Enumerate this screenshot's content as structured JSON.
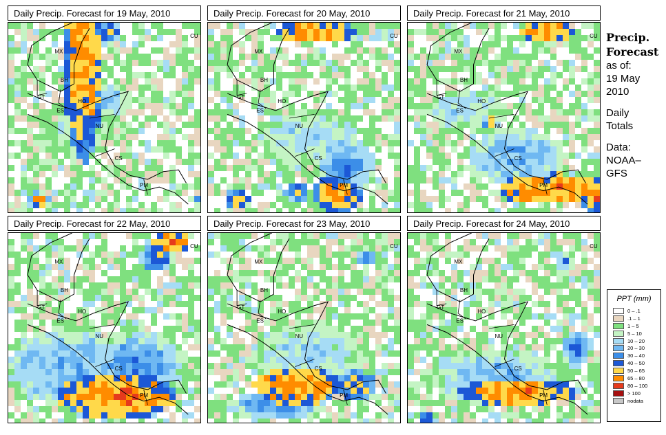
{
  "panels": [
    {
      "title": "Daily Precip. Forecast for  19 May, 2010",
      "seed": 19,
      "blobs": [
        [
          0.38,
          0.18,
          0.1,
          0.55,
          9,
          6
        ],
        [
          0.5,
          0.05,
          0.07,
          0.05,
          8,
          4
        ],
        [
          0.15,
          0.93,
          0.06,
          0.05,
          9,
          3
        ],
        [
          0.98,
          0.93,
          0.04,
          0.04,
          9,
          2
        ],
        [
          0.45,
          0.4,
          0.18,
          0.1,
          5,
          2
        ],
        [
          0.35,
          0.55,
          0.22,
          0.15,
          3,
          1
        ]
      ]
    },
    {
      "title": "Daily Precip. Forecast for  20 May, 2010",
      "seed": 20,
      "blobs": [
        [
          0.55,
          0.05,
          0.2,
          0.06,
          9,
          7
        ],
        [
          0.65,
          0.9,
          0.12,
          0.1,
          9,
          6
        ],
        [
          0.45,
          0.88,
          0.06,
          0.05,
          8,
          4
        ],
        [
          0.15,
          0.92,
          0.07,
          0.05,
          9,
          4
        ],
        [
          0.5,
          0.6,
          0.25,
          0.15,
          4,
          2
        ],
        [
          0.7,
          0.75,
          0.15,
          0.15,
          6,
          3
        ]
      ]
    },
    {
      "title": "Daily Precip. Forecast for  21 May, 2010",
      "seed": 21,
      "blobs": [
        [
          0.7,
          0.05,
          0.15,
          0.05,
          9,
          7
        ],
        [
          0.42,
          0.52,
          0.04,
          0.04,
          9,
          3
        ],
        [
          0.75,
          0.87,
          0.3,
          0.08,
          9,
          7
        ],
        [
          0.95,
          0.9,
          0.08,
          0.1,
          9,
          5
        ],
        [
          0.55,
          0.7,
          0.25,
          0.15,
          5,
          3
        ],
        [
          0.3,
          0.45,
          0.2,
          0.1,
          4,
          2
        ]
      ]
    },
    {
      "title": "Daily Precip. Forecast for  22 May, 2010",
      "seed": 22,
      "blobs": [
        [
          0.82,
          0.05,
          0.1,
          0.06,
          9,
          7
        ],
        [
          0.75,
          0.13,
          0.08,
          0.08,
          7,
          4
        ],
        [
          0.55,
          0.85,
          0.3,
          0.12,
          9,
          7
        ],
        [
          0.3,
          0.7,
          0.3,
          0.2,
          5,
          3
        ],
        [
          0.65,
          0.7,
          0.25,
          0.2,
          6,
          2
        ]
      ]
    },
    {
      "title": "Daily Precip. Forecast for  23 May, 2010",
      "seed": 23,
      "blobs": [
        [
          0.45,
          0.8,
          0.22,
          0.1,
          9,
          7
        ],
        [
          0.75,
          0.8,
          0.1,
          0.08,
          8,
          5
        ],
        [
          0.35,
          0.9,
          0.25,
          0.08,
          6,
          3
        ],
        [
          0.8,
          0.13,
          0.05,
          0.05,
          7,
          3
        ],
        [
          0.5,
          0.65,
          0.3,
          0.2,
          4,
          2
        ]
      ]
    },
    {
      "title": "Daily Precip. Forecast for  24 May, 2010",
      "seed": 24,
      "blobs": [
        [
          0.55,
          0.83,
          0.3,
          0.07,
          9,
          7
        ],
        [
          0.85,
          0.6,
          0.08,
          0.1,
          6,
          3
        ],
        [
          0.1,
          0.97,
          0.05,
          0.03,
          8,
          4
        ],
        [
          0.8,
          0.15,
          0.04,
          0.04,
          6,
          3
        ],
        [
          0.45,
          0.75,
          0.35,
          0.15,
          5,
          2
        ]
      ]
    }
  ],
  "map_labels": [
    "MX",
    "BH",
    "GT",
    "HO",
    "ES",
    "NU",
    "CS",
    "PM",
    "CU"
  ],
  "side": {
    "title_line1": "Precip.",
    "title_line2": "Forecast",
    "asof": "as of:",
    "date_line1": "19 May",
    "date_line2": "2010",
    "daily_line1": "Daily",
    "daily_line2": "Totals",
    "data_line1": "Data:",
    "data_line2": "NOAA–",
    "data_line3": "GFS"
  },
  "legend": {
    "title": "PPT (mm)",
    "items": [
      {
        "label": "0 – .1",
        "color": "#ffffff"
      },
      {
        "label": ".1 – 1",
        "color": "#e8d6c0"
      },
      {
        "label": "1 – 5",
        "color": "#7fe07f"
      },
      {
        "label": "5 – 10",
        "color": "#c4f4c4"
      },
      {
        "label": "10 – 20",
        "color": "#a6dcf5"
      },
      {
        "label": "20 – 30",
        "color": "#6fb8f2"
      },
      {
        "label": "30 – 40",
        "color": "#3c8ee8"
      },
      {
        "label": "40 – 50",
        "color": "#1c58d6"
      },
      {
        "label": "50 – 65",
        "color": "#ffd94a"
      },
      {
        "label": "65 – 80",
        "color": "#ff8c00"
      },
      {
        "label": "80 – 100",
        "color": "#e63a1c"
      },
      {
        "label": "> 100",
        "color": "#a61010"
      },
      {
        "label": "nodata",
        "color": "#c8c8c8"
      }
    ]
  }
}
